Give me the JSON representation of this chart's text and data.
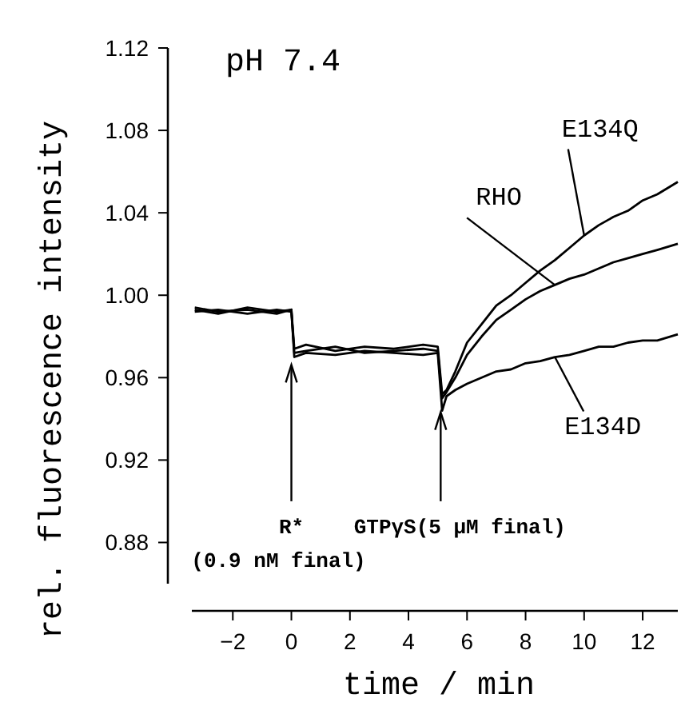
{
  "chart_data": {
    "type": "line",
    "title": "pH 7.4",
    "xlabel": "time / min",
    "ylabel": "rel. fluorescence intensity",
    "xlim": [
      -3.4,
      13.2
    ],
    "ylim": [
      0.86,
      1.12
    ],
    "xticks": [
      -2,
      0,
      2,
      4,
      6,
      8,
      10,
      12
    ],
    "yticks": [
      0.88,
      0.92,
      0.96,
      {
        "value": 1.0,
        "label": "1.00"
      },
      1.04,
      1.08,
      1.12
    ],
    "grid": false,
    "marker": "none",
    "line_style": "solid",
    "annotations": [
      {
        "text": "R*\n(0.9 nM final)",
        "x": 0,
        "y": 0.967
      },
      {
        "text": "GTPγS(5 μM final)",
        "x": 5.1,
        "y": 0.944
      }
    ],
    "series": [
      {
        "name": "E134Q",
        "color": "#000000",
        "x": [
          -3.3,
          -2.5,
          -1.5,
          -0.5,
          0,
          0.1,
          0.5,
          1.5,
          2.5,
          3.5,
          4.5,
          5.0,
          5.15,
          5.3,
          5.6,
          6,
          6.5,
          7,
          7.5,
          8,
          8.5,
          9,
          9.5,
          10,
          10.5,
          11,
          11.5,
          12,
          12.5,
          13.2
        ],
        "values": [
          0.993,
          0.991,
          0.994,
          0.992,
          0.993,
          0.974,
          0.976,
          0.973,
          0.975,
          0.974,
          0.976,
          0.975,
          0.952,
          0.954,
          0.963,
          0.977,
          0.986,
          0.995,
          1.0,
          1.006,
          1.012,
          1.017,
          1.023,
          1.029,
          1.034,
          1.038,
          1.041,
          1.046,
          1.049,
          1.055
        ]
      },
      {
        "name": "RHO",
        "color": "#000000",
        "x": [
          -3.3,
          -2.5,
          -1.5,
          -0.5,
          0,
          0.1,
          0.5,
          1.5,
          2.5,
          3.5,
          4.5,
          5.0,
          5.15,
          5.3,
          5.6,
          6,
          6.5,
          7,
          7.5,
          8,
          8.5,
          9,
          9.5,
          10,
          10.5,
          11,
          11.5,
          12,
          12.5,
          13.2
        ],
        "values": [
          0.992,
          0.993,
          0.991,
          0.993,
          0.992,
          0.972,
          0.973,
          0.975,
          0.972,
          0.973,
          0.974,
          0.973,
          0.95,
          0.953,
          0.96,
          0.971,
          0.98,
          0.988,
          0.993,
          0.998,
          1.002,
          1.005,
          1.008,
          1.01,
          1.013,
          1.016,
          1.018,
          1.02,
          1.022,
          1.025
        ]
      },
      {
        "name": "E134D",
        "color": "#000000",
        "x": [
          -3.3,
          -2.5,
          -1.5,
          -0.5,
          0,
          0.1,
          0.5,
          1.5,
          2.5,
          3.5,
          4.5,
          5.0,
          5.15,
          5.3,
          5.6,
          6,
          6.5,
          7,
          7.5,
          8,
          8.5,
          9,
          9.5,
          10,
          10.5,
          11,
          11.5,
          12,
          12.5,
          13.2
        ],
        "values": [
          0.994,
          0.992,
          0.993,
          0.991,
          0.993,
          0.97,
          0.972,
          0.971,
          0.973,
          0.972,
          0.971,
          0.972,
          0.944,
          0.951,
          0.954,
          0.957,
          0.96,
          0.963,
          0.964,
          0.967,
          0.968,
          0.97,
          0.971,
          0.973,
          0.975,
          0.975,
          0.977,
          0.978,
          0.978,
          0.981
        ]
      }
    ]
  }
}
